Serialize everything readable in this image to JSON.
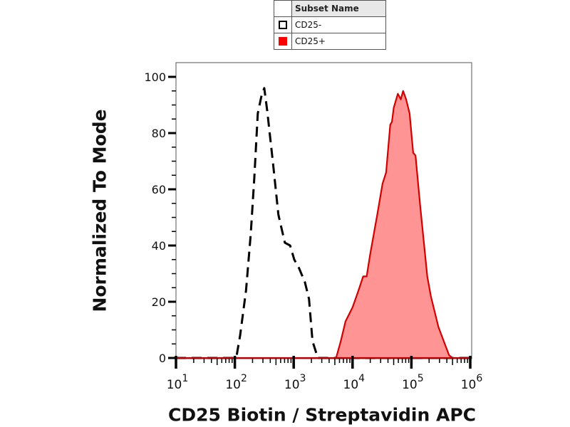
{
  "chart_data": {
    "type": "histogram-overlay",
    "xlabel": "CD25 Biotin / Streptavidin APC",
    "ylabel": "Normalized To Mode",
    "x_scale": "log",
    "xlim_log10": [
      1,
      6
    ],
    "ylim": [
      0,
      100
    ],
    "x_ticks": [
      {
        "base": "10",
        "exp": "1",
        "log10": 1
      },
      {
        "base": "10",
        "exp": "2",
        "log10": 2
      },
      {
        "base": "10",
        "exp": "3",
        "log10": 3
      },
      {
        "base": "10",
        "exp": "4",
        "log10": 4
      },
      {
        "base": "10",
        "exp": "5",
        "log10": 5
      },
      {
        "base": "10",
        "exp": "6",
        "log10": 6
      }
    ],
    "y_ticks": [
      "0",
      "20",
      "40",
      "60",
      "80",
      "100"
    ],
    "y_tick_values": [
      0,
      20,
      40,
      60,
      80,
      100
    ],
    "grid": false,
    "legend": {
      "position": "top-center",
      "header": "Subset Name",
      "entries": [
        {
          "name": "CD25-",
          "style": "dashed-outline",
          "color": "#000000"
        },
        {
          "name": "CD25+",
          "style": "filled",
          "color": "#ff0000"
        }
      ]
    },
    "series": [
      {
        "name": "CD25-",
        "style": "dashed",
        "stroke": "#000000",
        "fill": "none",
        "x_log10": [
          1.0,
          2.0,
          2.03,
          2.09,
          2.19,
          2.27,
          2.33,
          2.39,
          2.45,
          2.5,
          2.55,
          2.65,
          2.74,
          2.85,
          2.94,
          3.01,
          3.09,
          3.19,
          3.26,
          3.32,
          3.41,
          6.0
        ],
        "y": [
          0,
          0,
          0.8,
          8,
          24,
          44,
          64,
          87,
          93,
          96,
          88,
          69,
          51,
          41,
          40,
          35,
          32,
          27,
          21,
          6,
          0,
          0
        ]
      },
      {
        "name": "CD25+",
        "style": "filled",
        "stroke": "#d40000",
        "fill": "#ff9494",
        "x_log10": [
          1.0,
          3.72,
          3.8,
          3.88,
          4.0,
          4.1,
          4.18,
          4.24,
          4.3,
          4.42,
          4.51,
          4.57,
          4.64,
          4.67,
          4.7,
          4.77,
          4.82,
          4.86,
          4.91,
          4.97,
          5.03,
          5.07,
          5.15,
          5.27,
          5.33,
          5.46,
          5.64,
          5.7,
          6.0
        ],
        "y": [
          0,
          0,
          6,
          13,
          18,
          24,
          29,
          29,
          37,
          51,
          62,
          66,
          83,
          84,
          89,
          94,
          92,
          95,
          92,
          87,
          73,
          72,
          54,
          29,
          22,
          11,
          1,
          0,
          0
        ]
      }
    ]
  }
}
